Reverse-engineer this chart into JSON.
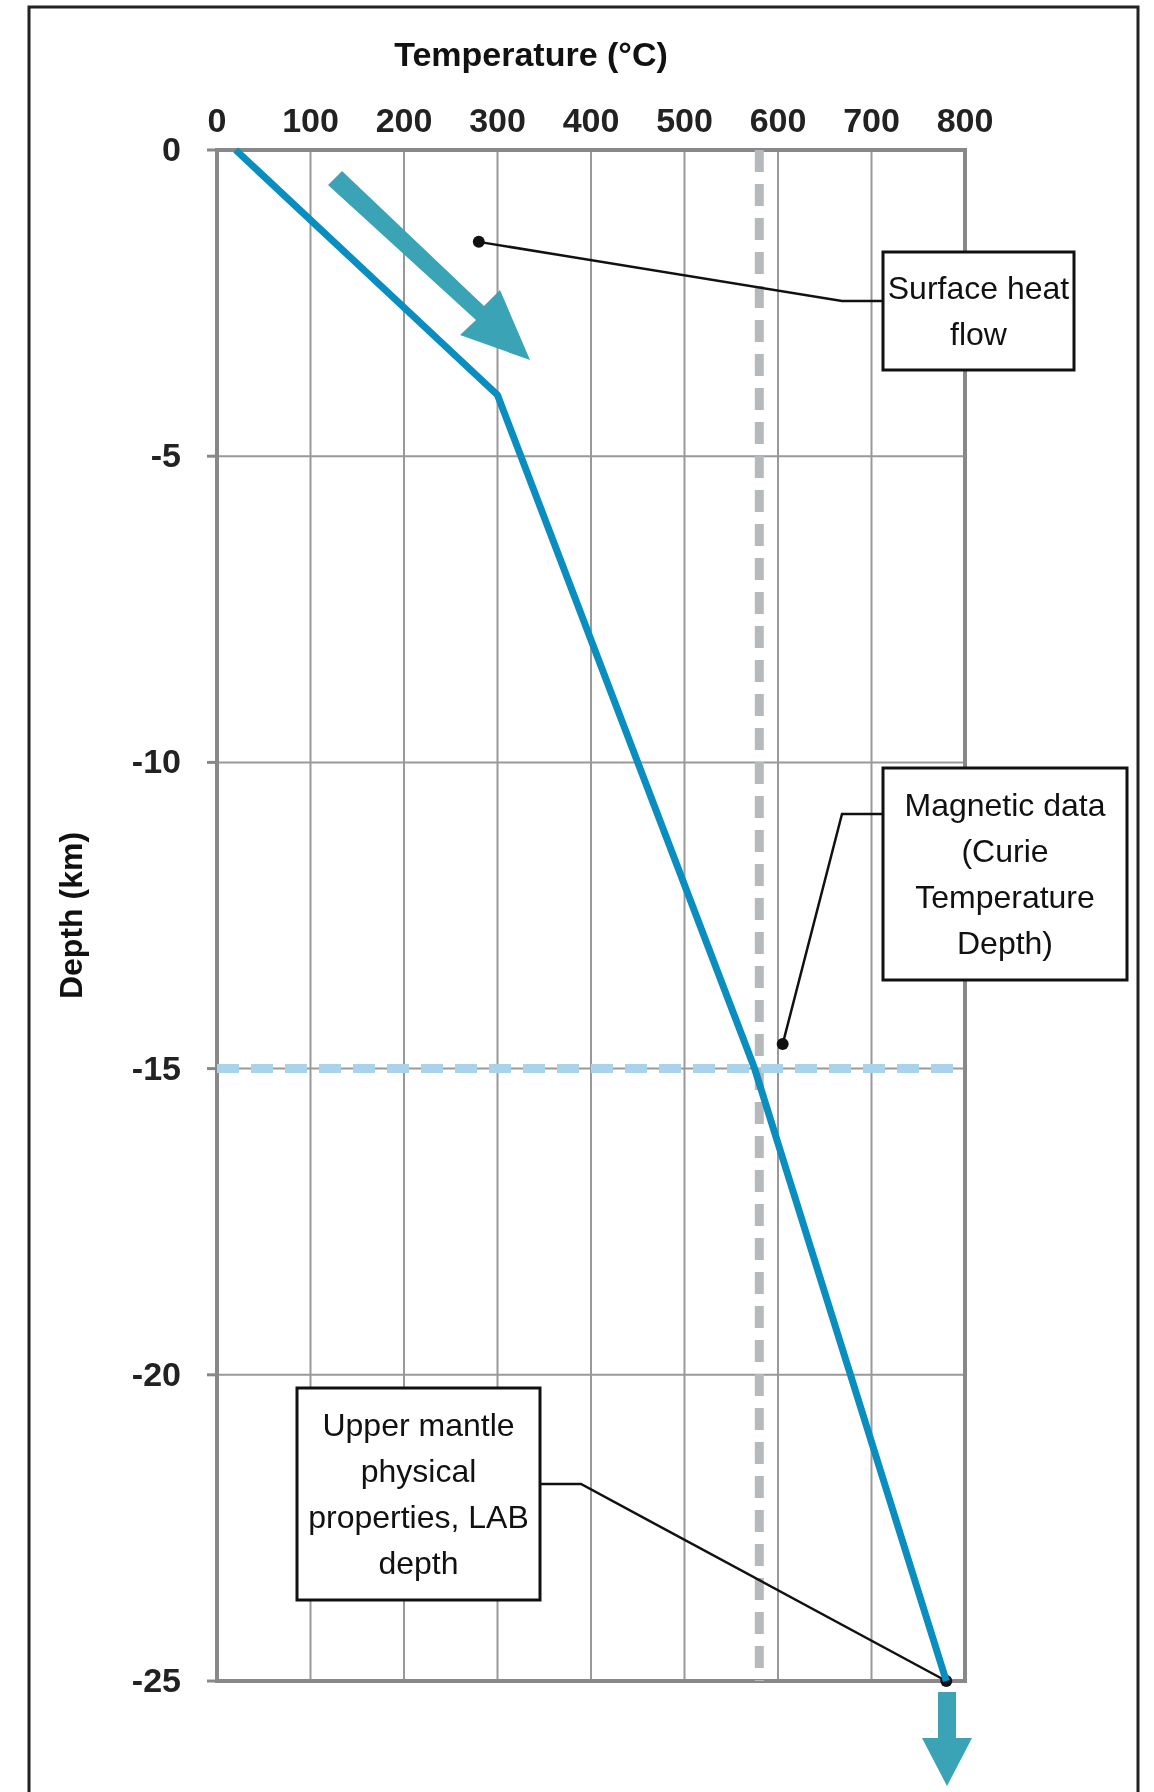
{
  "chart_data": {
    "type": "line",
    "xlabel": "Temperature (°C)",
    "ylabel": "Depth (km)",
    "xlim": [
      0,
      800
    ],
    "ylim": [
      -25,
      0
    ],
    "xticks": [
      0,
      100,
      200,
      300,
      400,
      500,
      600,
      700,
      800
    ],
    "yticks": [
      0,
      -5,
      -10,
      -15,
      -20,
      -25
    ],
    "grid": true,
    "marker": "none",
    "line_style": "solid",
    "series": [
      {
        "x": [
          20,
          300,
          575,
          780
        ],
        "values": [
          0,
          -4,
          -15,
          -25
        ],
        "color": "#0a8dbf"
      }
    ],
    "ref_lines": [
      {
        "axis": "x",
        "value": 580,
        "color": "#b5b9bb",
        "line_style": "dashed"
      },
      {
        "axis": "y",
        "value": -15,
        "color": "#a9d3ea",
        "line_style": "dashed"
      }
    ],
    "annotations": [
      {
        "text": "Surface heat flow",
        "x": 280,
        "y": -1.5
      },
      {
        "text": "Magnetic data (Curie Temperature Depth)",
        "x": 605,
        "y": -14.6
      },
      {
        "text": "Upper mantle physical properties, LAB depth",
        "x": 780,
        "y": -25
      }
    ]
  }
}
